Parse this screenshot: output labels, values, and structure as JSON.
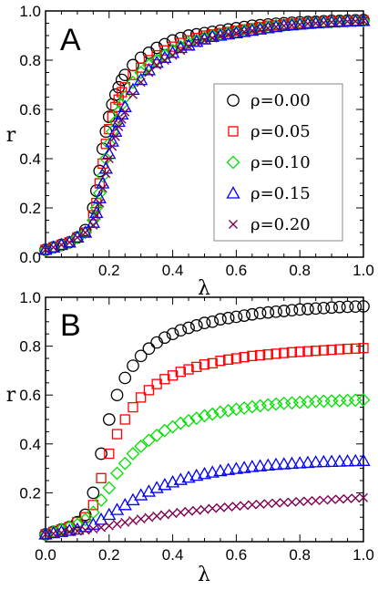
{
  "colors": {
    "rho_0_00": "#000000",
    "rho_0_05": "#ff0000",
    "rho_0_10": "#00e000",
    "rho_0_15": "#0000ff",
    "rho_0_20": "#800050"
  },
  "chart_data": [
    {
      "type": "scatter",
      "panel_label": "A",
      "xlabel": "λ",
      "ylabel": "r",
      "xlim": [
        0,
        1
      ],
      "ylim": [
        0,
        1
      ],
      "xticks": [
        "0.2",
        "0.4",
        "0.6",
        "0.8",
        "1.0"
      ],
      "yticks": [
        "0.0",
        "0.2",
        "0.4",
        "0.6",
        "0.8",
        "1.0"
      ],
      "grid": false,
      "legend": "right",
      "series": [
        {
          "name": "ρ=0.00",
          "marker": "circle",
          "color": "#000000",
          "x": [
            0.0,
            0.025,
            0.05,
            0.075,
            0.1,
            0.125,
            0.15,
            0.16,
            0.17,
            0.18,
            0.19,
            0.2,
            0.21,
            0.22,
            0.23,
            0.24,
            0.25,
            0.275,
            0.3,
            0.325,
            0.35,
            0.375,
            0.4,
            0.425,
            0.45,
            0.475,
            0.5,
            0.525,
            0.55,
            0.575,
            0.6,
            0.625,
            0.65,
            0.675,
            0.7,
            0.725,
            0.75,
            0.775,
            0.8,
            0.825,
            0.85,
            0.875,
            0.9,
            0.925,
            0.95,
            0.975,
            1.0
          ],
          "y": [
            0.03,
            0.04,
            0.05,
            0.06,
            0.08,
            0.11,
            0.2,
            0.27,
            0.35,
            0.44,
            0.51,
            0.57,
            0.62,
            0.66,
            0.69,
            0.72,
            0.74,
            0.78,
            0.81,
            0.83,
            0.85,
            0.865,
            0.88,
            0.89,
            0.9,
            0.905,
            0.91,
            0.915,
            0.92,
            0.925,
            0.93,
            0.935,
            0.94,
            0.942,
            0.945,
            0.948,
            0.95,
            0.952,
            0.954,
            0.955,
            0.956,
            0.958,
            0.96,
            0.96,
            0.961,
            0.962,
            0.963
          ]
        },
        {
          "name": "ρ=0.05",
          "marker": "square",
          "color": "#ff0000",
          "x": [
            0.0,
            0.025,
            0.05,
            0.075,
            0.1,
            0.125,
            0.15,
            0.16,
            0.17,
            0.18,
            0.19,
            0.2,
            0.21,
            0.22,
            0.23,
            0.24,
            0.25,
            0.275,
            0.3,
            0.325,
            0.35,
            0.375,
            0.4,
            0.425,
            0.45,
            0.475,
            0.5,
            0.525,
            0.55,
            0.575,
            0.6,
            0.625,
            0.65,
            0.675,
            0.7,
            0.725,
            0.75,
            0.775,
            0.8,
            0.825,
            0.85,
            0.875,
            0.9,
            0.925,
            0.95,
            0.975,
            1.0
          ],
          "y": [
            0.03,
            0.04,
            0.05,
            0.06,
            0.08,
            0.1,
            0.17,
            0.22,
            0.3,
            0.38,
            0.46,
            0.52,
            0.57,
            0.61,
            0.64,
            0.67,
            0.69,
            0.74,
            0.77,
            0.8,
            0.82,
            0.84,
            0.855,
            0.87,
            0.88,
            0.89,
            0.9,
            0.905,
            0.91,
            0.915,
            0.92,
            0.925,
            0.93,
            0.935,
            0.94,
            0.942,
            0.945,
            0.948,
            0.95,
            0.952,
            0.954,
            0.955,
            0.957,
            0.958,
            0.96,
            0.961,
            0.962
          ]
        },
        {
          "name": "ρ=0.10",
          "marker": "diamond",
          "color": "#00e000",
          "x": [
            0.0,
            0.025,
            0.05,
            0.075,
            0.1,
            0.125,
            0.15,
            0.16,
            0.17,
            0.18,
            0.19,
            0.2,
            0.21,
            0.22,
            0.23,
            0.24,
            0.25,
            0.275,
            0.3,
            0.325,
            0.35,
            0.375,
            0.4,
            0.425,
            0.45,
            0.475,
            0.5,
            0.525,
            0.55,
            0.575,
            0.6,
            0.625,
            0.65,
            0.675,
            0.7,
            0.725,
            0.75,
            0.775,
            0.8,
            0.825,
            0.85,
            0.875,
            0.9,
            0.925,
            0.95,
            0.975,
            1.0
          ],
          "y": [
            0.03,
            0.04,
            0.05,
            0.06,
            0.08,
            0.1,
            0.15,
            0.2,
            0.26,
            0.33,
            0.4,
            0.46,
            0.51,
            0.55,
            0.59,
            0.62,
            0.65,
            0.71,
            0.75,
            0.78,
            0.8,
            0.82,
            0.84,
            0.855,
            0.87,
            0.88,
            0.89,
            0.9,
            0.905,
            0.91,
            0.915,
            0.92,
            0.925,
            0.93,
            0.935,
            0.94,
            0.942,
            0.945,
            0.948,
            0.95,
            0.952,
            0.954,
            0.955,
            0.957,
            0.958,
            0.96,
            0.96
          ]
        },
        {
          "name": "ρ=0.15",
          "marker": "triangle",
          "color": "#0000ff",
          "x": [
            0.0,
            0.025,
            0.05,
            0.075,
            0.1,
            0.125,
            0.15,
            0.16,
            0.17,
            0.18,
            0.19,
            0.2,
            0.21,
            0.22,
            0.23,
            0.24,
            0.25,
            0.275,
            0.3,
            0.325,
            0.35,
            0.375,
            0.4,
            0.425,
            0.45,
            0.475,
            0.5,
            0.525,
            0.55,
            0.575,
            0.6,
            0.625,
            0.65,
            0.675,
            0.7,
            0.725,
            0.75,
            0.775,
            0.8,
            0.825,
            0.85,
            0.875,
            0.9,
            0.925,
            0.95,
            0.975,
            1.0
          ],
          "y": [
            0.03,
            0.04,
            0.05,
            0.06,
            0.08,
            0.1,
            0.14,
            0.18,
            0.24,
            0.3,
            0.36,
            0.42,
            0.47,
            0.51,
            0.55,
            0.58,
            0.61,
            0.68,
            0.72,
            0.76,
            0.79,
            0.81,
            0.83,
            0.85,
            0.86,
            0.875,
            0.885,
            0.895,
            0.9,
            0.905,
            0.91,
            0.915,
            0.92,
            0.925,
            0.93,
            0.935,
            0.94,
            0.942,
            0.945,
            0.948,
            0.95,
            0.952,
            0.954,
            0.955,
            0.957,
            0.958,
            0.96
          ]
        },
        {
          "name": "ρ=0.20",
          "marker": "x",
          "color": "#800050",
          "x": [
            0.0,
            0.025,
            0.05,
            0.075,
            0.1,
            0.125,
            0.15,
            0.16,
            0.17,
            0.18,
            0.19,
            0.2,
            0.21,
            0.22,
            0.23,
            0.24,
            0.25,
            0.275,
            0.3,
            0.325,
            0.35,
            0.375,
            0.4,
            0.425,
            0.45,
            0.475,
            0.5,
            0.525,
            0.55,
            0.575,
            0.6,
            0.625,
            0.65,
            0.675,
            0.7,
            0.725,
            0.75,
            0.775,
            0.8,
            0.825,
            0.85,
            0.875,
            0.9,
            0.925,
            0.95,
            0.975,
            1.0
          ],
          "y": [
            0.03,
            0.04,
            0.05,
            0.06,
            0.08,
            0.1,
            0.13,
            0.17,
            0.22,
            0.28,
            0.34,
            0.4,
            0.45,
            0.49,
            0.53,
            0.56,
            0.59,
            0.66,
            0.71,
            0.75,
            0.78,
            0.8,
            0.82,
            0.84,
            0.855,
            0.87,
            0.88,
            0.89,
            0.9,
            0.905,
            0.91,
            0.915,
            0.92,
            0.925,
            0.93,
            0.935,
            0.94,
            0.942,
            0.945,
            0.948,
            0.95,
            0.952,
            0.954,
            0.955,
            0.957,
            0.958,
            0.96
          ]
        }
      ]
    },
    {
      "type": "scatter",
      "panel_label": "B",
      "xlabel": "λ",
      "ylabel": "r",
      "xlim": [
        0,
        1
      ],
      "ylim": [
        0,
        1
      ],
      "xticks": [
        "0.0",
        "0.2",
        "0.4",
        "0.6",
        "0.8",
        "1.0"
      ],
      "yticks": [
        "0.2",
        "0.4",
        "0.6",
        "0.8",
        "1.0"
      ],
      "grid": false,
      "legend": "none",
      "series": [
        {
          "name": "ρ=0.00",
          "marker": "circle",
          "color": "#000000",
          "x": [
            0.0,
            0.025,
            0.05,
            0.075,
            0.1,
            0.125,
            0.15,
            0.175,
            0.2,
            0.225,
            0.25,
            0.275,
            0.3,
            0.325,
            0.35,
            0.375,
            0.4,
            0.425,
            0.45,
            0.475,
            0.5,
            0.525,
            0.55,
            0.575,
            0.6,
            0.625,
            0.65,
            0.675,
            0.7,
            0.725,
            0.75,
            0.775,
            0.8,
            0.825,
            0.85,
            0.875,
            0.9,
            0.925,
            0.95,
            0.975,
            1.0
          ],
          "y": [
            0.03,
            0.04,
            0.05,
            0.06,
            0.08,
            0.11,
            0.2,
            0.36,
            0.5,
            0.6,
            0.67,
            0.72,
            0.76,
            0.79,
            0.815,
            0.835,
            0.85,
            0.865,
            0.875,
            0.885,
            0.895,
            0.9,
            0.91,
            0.915,
            0.92,
            0.925,
            0.93,
            0.935,
            0.938,
            0.941,
            0.944,
            0.947,
            0.95,
            0.952,
            0.954,
            0.956,
            0.958,
            0.96,
            0.961,
            0.962,
            0.963
          ]
        },
        {
          "name": "ρ=0.05",
          "marker": "square",
          "color": "#ff0000",
          "x": [
            0.0,
            0.025,
            0.05,
            0.075,
            0.1,
            0.125,
            0.15,
            0.175,
            0.2,
            0.225,
            0.25,
            0.275,
            0.3,
            0.325,
            0.35,
            0.375,
            0.4,
            0.425,
            0.45,
            0.475,
            0.5,
            0.525,
            0.55,
            0.575,
            0.6,
            0.625,
            0.65,
            0.675,
            0.7,
            0.725,
            0.75,
            0.775,
            0.8,
            0.825,
            0.85,
            0.875,
            0.9,
            0.925,
            0.95,
            0.975,
            1.0
          ],
          "y": [
            0.03,
            0.04,
            0.05,
            0.06,
            0.08,
            0.1,
            0.15,
            0.26,
            0.36,
            0.44,
            0.5,
            0.55,
            0.59,
            0.62,
            0.645,
            0.665,
            0.68,
            0.695,
            0.705,
            0.715,
            0.725,
            0.73,
            0.74,
            0.745,
            0.75,
            0.755,
            0.76,
            0.763,
            0.766,
            0.769,
            0.772,
            0.775,
            0.777,
            0.779,
            0.781,
            0.783,
            0.785,
            0.787,
            0.789,
            0.79,
            0.792
          ]
        },
        {
          "name": "ρ=0.10",
          "marker": "diamond",
          "color": "#00e000",
          "x": [
            0.0,
            0.025,
            0.05,
            0.075,
            0.1,
            0.125,
            0.15,
            0.175,
            0.2,
            0.225,
            0.25,
            0.275,
            0.3,
            0.325,
            0.35,
            0.375,
            0.4,
            0.425,
            0.45,
            0.475,
            0.5,
            0.525,
            0.55,
            0.575,
            0.6,
            0.625,
            0.65,
            0.675,
            0.7,
            0.725,
            0.75,
            0.775,
            0.8,
            0.825,
            0.85,
            0.875,
            0.9,
            0.925,
            0.95,
            0.975,
            1.0
          ],
          "y": [
            0.03,
            0.04,
            0.05,
            0.06,
            0.07,
            0.09,
            0.12,
            0.17,
            0.22,
            0.28,
            0.32,
            0.36,
            0.39,
            0.415,
            0.435,
            0.455,
            0.47,
            0.485,
            0.495,
            0.505,
            0.515,
            0.522,
            0.53,
            0.536,
            0.542,
            0.547,
            0.552,
            0.556,
            0.56,
            0.563,
            0.566,
            0.568,
            0.57,
            0.572,
            0.574,
            0.575,
            0.576,
            0.577,
            0.578,
            0.579,
            0.58
          ]
        },
        {
          "name": "ρ=0.15",
          "marker": "triangle",
          "color": "#0000ff",
          "x": [
            0.0,
            0.025,
            0.05,
            0.075,
            0.1,
            0.125,
            0.15,
            0.175,
            0.2,
            0.225,
            0.25,
            0.275,
            0.3,
            0.325,
            0.35,
            0.375,
            0.4,
            0.425,
            0.45,
            0.475,
            0.5,
            0.525,
            0.55,
            0.575,
            0.6,
            0.625,
            0.65,
            0.675,
            0.7,
            0.725,
            0.75,
            0.775,
            0.8,
            0.825,
            0.85,
            0.875,
            0.9,
            0.925,
            0.95,
            0.975,
            1.0
          ],
          "y": [
            0.03,
            0.035,
            0.04,
            0.045,
            0.05,
            0.06,
            0.07,
            0.09,
            0.11,
            0.13,
            0.15,
            0.17,
            0.19,
            0.205,
            0.22,
            0.232,
            0.243,
            0.253,
            0.262,
            0.27,
            0.277,
            0.283,
            0.289,
            0.294,
            0.298,
            0.302,
            0.306,
            0.309,
            0.312,
            0.315,
            0.317,
            0.319,
            0.321,
            0.323,
            0.325,
            0.326,
            0.327,
            0.328,
            0.329,
            0.33,
            0.331
          ]
        },
        {
          "name": "ρ=0.20",
          "marker": "x",
          "color": "#800050",
          "x": [
            0.0,
            0.025,
            0.05,
            0.075,
            0.1,
            0.125,
            0.15,
            0.175,
            0.2,
            0.225,
            0.25,
            0.275,
            0.3,
            0.325,
            0.35,
            0.375,
            0.4,
            0.425,
            0.45,
            0.475,
            0.5,
            0.525,
            0.55,
            0.575,
            0.6,
            0.625,
            0.65,
            0.675,
            0.7,
            0.725,
            0.75,
            0.775,
            0.8,
            0.825,
            0.85,
            0.875,
            0.9,
            0.925,
            0.95,
            0.975,
            1.0
          ],
          "y": [
            0.03,
            0.033,
            0.036,
            0.04,
            0.043,
            0.047,
            0.052,
            0.058,
            0.065,
            0.072,
            0.079,
            0.086,
            0.093,
            0.099,
            0.105,
            0.11,
            0.115,
            0.12,
            0.124,
            0.128,
            0.132,
            0.136,
            0.139,
            0.142,
            0.145,
            0.148,
            0.151,
            0.153,
            0.156,
            0.158,
            0.16,
            0.162,
            0.164,
            0.166,
            0.168,
            0.17,
            0.172,
            0.174,
            0.176,
            0.178,
            0.18
          ]
        }
      ]
    }
  ]
}
